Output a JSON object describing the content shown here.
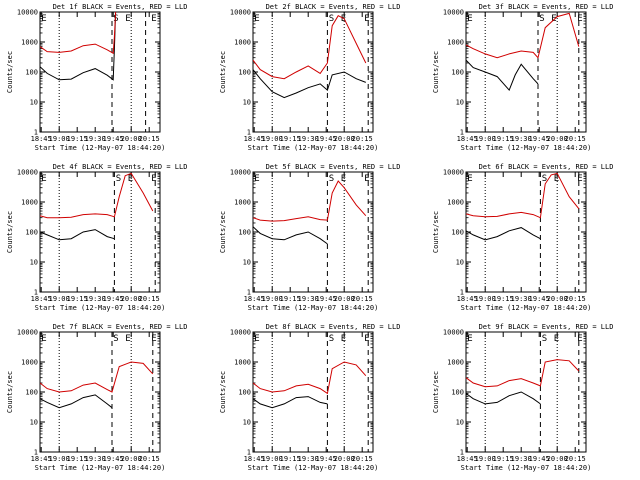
{
  "figure": {
    "panel_titles": [
      "Det 1f BLACK = Events, RED = LLD",
      "Det 2f BLACK = Events, RED = LLD",
      "Det 3f BLACK = Events, RED = LLD",
      "Det 4f BLACK = Events, RED = LLD",
      "Det 5f BLACK = Events, RED = LLD",
      "Det 6f BLACK = Events, RED = LLD",
      "Det 7f BLACK = Events, RED = LLD",
      "Det 8f BLACK = Events, RED = LLD",
      "Det 9f BLACK = Events, RED = LLD"
    ],
    "ylabel": "Counts/sec",
    "xlabel": "Start Time (12-May-07 18:44:20)",
    "xtick_labels": [
      "18:45",
      "19:00",
      "19:15",
      "19:30",
      "19:45",
      "20:00",
      "20:15"
    ],
    "ytick_labels": [
      "1",
      "10",
      "100",
      "1000",
      "10000"
    ],
    "markers": [
      "E",
      "S",
      "E",
      "E"
    ],
    "colors": {
      "events": "#000000",
      "lld": "#d00000",
      "axes": "#000000",
      "background": "#ffffff"
    }
  },
  "chart_data": [
    {
      "type": "line",
      "detector": "1f",
      "x_range": [
        "18:44",
        "20:24"
      ],
      "y_scale": "log",
      "ylim": [
        1,
        10000
      ],
      "dashed_lines": [
        "19:44",
        "20:12"
      ],
      "dotted_lines": [
        "19:00",
        "20:00"
      ],
      "series": [
        {
          "x": [
            "18:44",
            "18:50",
            "19:00",
            "19:10",
            "19:20",
            "19:30",
            "19:40",
            "19:45",
            "19:46",
            "19:47"
          ],
          "values": [
            150,
            90,
            55,
            58,
            95,
            130,
            78,
            55,
            600,
            10000
          ]
        },
        {
          "x": [
            "18:44",
            "18:50",
            "19:00",
            "19:10",
            "19:20",
            "19:30",
            "19:40",
            "19:45",
            "19:46",
            "19:47"
          ],
          "values": [
            700,
            480,
            450,
            500,
            750,
            850,
            550,
            420,
            1500,
            10000
          ]
        }
      ]
    },
    {
      "type": "line",
      "detector": "2f",
      "x_range": [
        "18:44",
        "20:24"
      ],
      "y_scale": "log",
      "ylim": [
        1,
        10000
      ],
      "dashed_lines": [
        "19:46",
        "20:20"
      ],
      "dotted_lines": [
        "19:00",
        "20:00"
      ],
      "series": [
        {
          "x": [
            "18:44",
            "18:50",
            "19:00",
            "19:10",
            "19:20",
            "19:30",
            "19:40",
            "19:46",
            "19:50",
            "20:00",
            "20:10",
            "20:18"
          ],
          "values": [
            120,
            60,
            22,
            14,
            20,
            30,
            40,
            25,
            80,
            100,
            60,
            45
          ]
        },
        {
          "x": [
            "18:44",
            "18:50",
            "19:00",
            "19:10",
            "19:20",
            "19:30",
            "19:40",
            "19:46",
            "19:50",
            "19:55",
            "20:00",
            "20:10",
            "20:18"
          ],
          "values": [
            250,
            120,
            70,
            60,
            100,
            160,
            90,
            200,
            3500,
            7500,
            6000,
            900,
            200
          ]
        }
      ]
    },
    {
      "type": "line",
      "detector": "3f",
      "x_range": [
        "18:44",
        "20:24"
      ],
      "y_scale": "log",
      "ylim": [
        1,
        10000
      ],
      "dashed_lines": [
        "19:44",
        "20:18"
      ],
      "dotted_lines": [
        "19:00",
        "20:00"
      ],
      "series": [
        {
          "x": [
            "18:44",
            "18:50",
            "19:00",
            "19:10",
            "19:20",
            "19:25",
            "19:30",
            "19:40",
            "19:44"
          ],
          "values": [
            250,
            140,
            100,
            70,
            25,
            80,
            180,
            60,
            40
          ]
        },
        {
          "x": [
            "18:44",
            "18:50",
            "19:00",
            "19:10",
            "19:20",
            "19:30",
            "19:40",
            "19:44",
            "19:50",
            "20:00",
            "20:10",
            "20:18"
          ],
          "values": [
            800,
            600,
            400,
            300,
            400,
            500,
            450,
            300,
            3000,
            7000,
            9000,
            700
          ]
        }
      ]
    },
    {
      "type": "line",
      "detector": "4f",
      "x_range": [
        "18:44",
        "20:24"
      ],
      "y_scale": "log",
      "ylim": [
        1,
        10000
      ],
      "dashed_lines": [
        "19:46",
        "20:20"
      ],
      "dotted_lines": [
        "19:00",
        "20:00"
      ],
      "series": [
        {
          "x": [
            "18:44",
            "18:50",
            "19:00",
            "19:10",
            "19:20",
            "19:30",
            "19:40",
            "19:46"
          ],
          "values": [
            100,
            80,
            55,
            60,
            100,
            120,
            70,
            60
          ]
        },
        {
          "x": [
            "18:44",
            "18:50",
            "19:00",
            "19:10",
            "19:20",
            "19:30",
            "19:40",
            "19:46",
            "19:50",
            "19:55",
            "20:00",
            "20:10",
            "20:18"
          ],
          "values": [
            350,
            300,
            300,
            310,
            380,
            400,
            380,
            320,
            1500,
            7500,
            9000,
            2000,
            500
          ]
        }
      ]
    },
    {
      "type": "line",
      "detector": "5f",
      "x_range": [
        "18:44",
        "20:24"
      ],
      "y_scale": "log",
      "ylim": [
        1,
        10000
      ],
      "dashed_lines": [
        "19:46",
        "20:20"
      ],
      "dotted_lines": [
        "19:00",
        "20:00"
      ],
      "series": [
        {
          "x": [
            "18:44",
            "18:50",
            "19:00",
            "19:10",
            "19:20",
            "19:30",
            "19:40",
            "19:46"
          ],
          "values": [
            150,
            90,
            60,
            55,
            80,
            100,
            60,
            40
          ]
        },
        {
          "x": [
            "18:44",
            "18:50",
            "19:00",
            "19:10",
            "19:20",
            "19:30",
            "19:40",
            "19:46",
            "19:50",
            "19:55",
            "20:00",
            "20:10",
            "20:18"
          ],
          "values": [
            300,
            250,
            230,
            240,
            280,
            320,
            260,
            250,
            2000,
            5000,
            3000,
            800,
            350
          ]
        }
      ]
    },
    {
      "type": "line",
      "detector": "6f",
      "x_range": [
        "18:44",
        "20:24"
      ],
      "y_scale": "log",
      "ylim": [
        1,
        10000
      ],
      "dashed_lines": [
        "19:46",
        "20:18"
      ],
      "dotted_lines": [
        "19:00",
        "20:00"
      ],
      "series": [
        {
          "x": [
            "18:44",
            "18:50",
            "19:00",
            "19:10",
            "19:20",
            "19:30",
            "19:40",
            "19:46"
          ],
          "values": [
            110,
            80,
            55,
            70,
            110,
            140,
            80,
            60
          ]
        },
        {
          "x": [
            "18:44",
            "18:50",
            "19:00",
            "19:10",
            "19:20",
            "19:30",
            "19:40",
            "19:46",
            "19:50",
            "19:55",
            "20:00",
            "20:10",
            "20:18"
          ],
          "values": [
            400,
            350,
            320,
            330,
            400,
            450,
            380,
            300,
            4000,
            8000,
            9000,
            1500,
            600
          ]
        }
      ]
    },
    {
      "type": "line",
      "detector": "7f",
      "x_range": [
        "18:44",
        "20:24"
      ],
      "y_scale": "log",
      "ylim": [
        1,
        10000
      ],
      "dashed_lines": [
        "19:44",
        "20:18"
      ],
      "dotted_lines": [
        "19:00",
        "20:00"
      ],
      "series": [
        {
          "x": [
            "18:44",
            "18:50",
            "19:00",
            "19:10",
            "19:20",
            "19:30",
            "19:40",
            "19:44"
          ],
          "values": [
            60,
            45,
            30,
            40,
            65,
            80,
            40,
            30
          ]
        },
        {
          "x": [
            "18:44",
            "18:50",
            "19:00",
            "19:10",
            "19:20",
            "19:30",
            "19:40",
            "19:44",
            "19:50",
            "20:00",
            "20:10",
            "20:18"
          ],
          "values": [
            200,
            130,
            100,
            110,
            170,
            200,
            120,
            100,
            700,
            1000,
            900,
            400
          ]
        }
      ]
    },
    {
      "type": "line",
      "detector": "8f",
      "x_range": [
        "18:44",
        "20:24"
      ],
      "y_scale": "log",
      "ylim": [
        1,
        10000
      ],
      "dashed_lines": [
        "19:46",
        "20:20"
      ],
      "dotted_lines": [
        "19:00",
        "20:00"
      ],
      "series": [
        {
          "x": [
            "18:44",
            "18:50",
            "19:00",
            "19:10",
            "19:20",
            "19:30",
            "19:40",
            "19:46"
          ],
          "values": [
            60,
            40,
            30,
            40,
            65,
            70,
            45,
            40
          ]
        },
        {
          "x": [
            "18:44",
            "18:50",
            "19:00",
            "19:10",
            "19:20",
            "19:30",
            "19:40",
            "19:46",
            "19:50",
            "20:00",
            "20:10",
            "20:18"
          ],
          "values": [
            200,
            130,
            100,
            110,
            160,
            180,
            130,
            90,
            600,
            1000,
            800,
            350
          ]
        }
      ]
    },
    {
      "type": "line",
      "detector": "9f",
      "x_range": [
        "18:44",
        "20:24"
      ],
      "y_scale": "log",
      "ylim": [
        1,
        10000
      ],
      "dashed_lines": [
        "19:46",
        "20:18"
      ],
      "dotted_lines": [
        "19:00",
        "20:00"
      ],
      "series": [
        {
          "x": [
            "18:44",
            "18:50",
            "19:00",
            "19:10",
            "19:20",
            "19:30",
            "19:40",
            "19:46"
          ],
          "values": [
            90,
            60,
            40,
            45,
            75,
            100,
            60,
            40
          ]
        },
        {
          "x": [
            "18:44",
            "18:50",
            "19:00",
            "19:10",
            "19:20",
            "19:30",
            "19:40",
            "19:46",
            "19:50",
            "20:00",
            "20:10",
            "20:18"
          ],
          "values": [
            300,
            200,
            150,
            160,
            240,
            280,
            200,
            160,
            1000,
            1200,
            1100,
            500
          ]
        }
      ]
    }
  ]
}
